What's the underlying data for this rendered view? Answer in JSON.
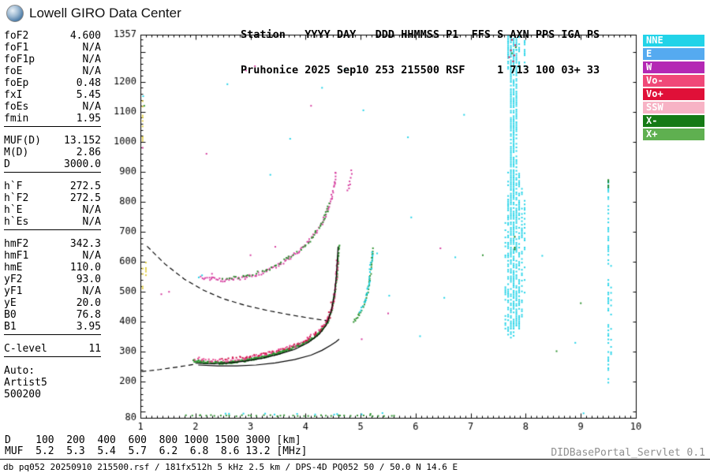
{
  "brand": {
    "logo_icon": "giro-globe-icon",
    "title": "Lowell GIRO Data Center"
  },
  "station_header": {
    "line1": "Station   YYYY DAY   DDD HHMMSS P1  FFS S AXN PPS IGA PS",
    "line2": "Pruhonice 2025 Sep10 253 215500 RSF     1 713 100 03+ 33"
  },
  "panel": {
    "groups": [
      {
        "rows": [
          [
            "foF2",
            "4.600"
          ],
          [
            "foF1",
            "N/A"
          ],
          [
            "foF1p",
            "N/A"
          ],
          [
            "foE",
            "N/A"
          ],
          [
            "foEp",
            "0.48"
          ],
          [
            "fxI",
            "5.45"
          ],
          [
            "foEs",
            "N/A"
          ],
          [
            "fmin",
            "1.95"
          ]
        ]
      },
      {
        "rows": [
          [
            "MUF(D)",
            "13.152"
          ],
          [
            "M(D)",
            "2.86"
          ],
          [
            "D",
            "3000.0"
          ]
        ]
      },
      {
        "rows": [
          [
            "h`F",
            "272.5"
          ],
          [
            "h`F2",
            "272.5"
          ],
          [
            "h`E",
            "N/A"
          ],
          [
            "h`Es",
            "N/A"
          ]
        ]
      },
      {
        "rows": [
          [
            "hmF2",
            "342.3"
          ],
          [
            "hmF1",
            "N/A"
          ],
          [
            "hmE",
            "110.0"
          ],
          [
            "yF2",
            "93.0"
          ],
          [
            "yF1",
            "N/A"
          ],
          [
            "yE",
            "20.0"
          ],
          [
            "B0",
            "76.8"
          ],
          [
            "B1",
            "3.95"
          ]
        ]
      },
      {
        "rows": [
          [
            "C-level",
            "11"
          ]
        ]
      }
    ],
    "auto": [
      "Auto:",
      "Artist5",
      "500200"
    ]
  },
  "legend": {
    "items": [
      {
        "label": "NNE",
        "color": "#22d3e8"
      },
      {
        "label": "E",
        "color": "#55aaf0"
      },
      {
        "label": "W",
        "color": "#b428b4"
      },
      {
        "label": "Vo-",
        "color": "#f04878"
      },
      {
        "label": "Vo+",
        "color": "#e01038"
      },
      {
        "label": "SSW",
        "color": "#f7b3c5"
      },
      {
        "label": "X-",
        "color": "#157a15"
      },
      {
        "label": "X+",
        "color": "#5fb050"
      }
    ]
  },
  "footer": {
    "d_line": "D    100  200  400  600  800 1000 1500 3000 [km]",
    "muf_line": "MUF  5.2  5.3  5.4  5.7  6.2  6.8  8.6 13.2 [MHz]",
    "status_line": "db pq052 20250910 215500.rsf / 181fx512h 5 kHz 2.5 km / DPS-4D PQ052 50 / 50.0 N 14.6 E",
    "servlet": "DIDBasePortal_Servlet 0.1"
  },
  "chart_data": {
    "type": "scatter",
    "title": "",
    "xlabel": "[MHz]",
    "ylabel": "[km]",
    "xlim": [
      1,
      10
    ],
    "ylim": [
      80,
      1357
    ],
    "x_ticks": [
      1,
      2,
      3,
      4,
      5,
      6,
      7,
      8,
      9,
      10
    ],
    "y_ticks": [
      80,
      200,
      300,
      400,
      500,
      600,
      700,
      800,
      900,
      1000,
      1100,
      1200,
      1357
    ],
    "x_minor_step": 0.1,
    "y_minor_step": 20,
    "grid": false,
    "legend_position": "top-right",
    "traces": [
      {
        "name": "F-trace-1hop-O-green",
        "color": "#2f9231",
        "step": 0.02,
        "spread": 4,
        "dup": 2,
        "path": [
          [
            1.97,
            270
          ],
          [
            2.1,
            266
          ],
          [
            2.3,
            263
          ],
          [
            2.5,
            263
          ],
          [
            2.7,
            266
          ],
          [
            2.9,
            271
          ],
          [
            3.1,
            278
          ],
          [
            3.3,
            286
          ],
          [
            3.5,
            296
          ],
          [
            3.7,
            308
          ],
          [
            3.9,
            323
          ],
          [
            4.05,
            337
          ],
          [
            4.2,
            356
          ],
          [
            4.3,
            374
          ],
          [
            4.4,
            400
          ],
          [
            4.47,
            435
          ],
          [
            4.52,
            480
          ],
          [
            4.56,
            535
          ],
          [
            4.59,
            600
          ],
          [
            4.61,
            655
          ]
        ]
      },
      {
        "name": "F-trace-1hop-Vo-pink",
        "color": "#e8458f",
        "step": 0.035,
        "spread": 5,
        "dup": 1,
        "path": [
          [
            2.0,
            278
          ],
          [
            2.3,
            271
          ],
          [
            2.6,
            271
          ],
          [
            2.9,
            279
          ],
          [
            3.2,
            289
          ],
          [
            3.5,
            304
          ],
          [
            3.8,
            320
          ],
          [
            4.05,
            345
          ],
          [
            4.2,
            364
          ],
          [
            4.3,
            382
          ],
          [
            4.4,
            408
          ],
          [
            4.47,
            443
          ],
          [
            4.52,
            488
          ],
          [
            4.56,
            543
          ],
          [
            4.58,
            608
          ]
        ]
      },
      {
        "name": "F-trace-1hop-Vo-red",
        "color": "#cf1647",
        "step": 0.06,
        "spread": 3,
        "dup": 1,
        "path": [
          [
            2.5,
            276
          ],
          [
            2.9,
            283
          ],
          [
            3.3,
            294
          ],
          [
            3.7,
            313
          ],
          [
            4.0,
            336
          ],
          [
            4.2,
            362
          ],
          [
            4.32,
            384
          ],
          [
            4.42,
            414
          ],
          [
            4.5,
            470
          ]
        ]
      },
      {
        "name": "F-trace-2hop-pink",
        "color": "#d63fa0",
        "step": 0.03,
        "spread": 6,
        "dup": 1,
        "path": [
          [
            2.1,
            550
          ],
          [
            2.3,
            543
          ],
          [
            2.5,
            540
          ],
          [
            2.7,
            542
          ],
          [
            2.9,
            548
          ],
          [
            3.1,
            557
          ],
          [
            3.3,
            570
          ],
          [
            3.5,
            588
          ],
          [
            3.7,
            611
          ],
          [
            3.9,
            640
          ],
          [
            4.05,
            668
          ],
          [
            4.2,
            700
          ],
          [
            4.3,
            730
          ],
          [
            4.4,
            770
          ],
          [
            4.47,
            815
          ],
          [
            4.52,
            860
          ],
          [
            4.55,
            900
          ]
        ]
      },
      {
        "name": "F-trace-2hop-green",
        "color": "#2f9231",
        "step": 0.05,
        "spread": 5,
        "dup": 1,
        "path": [
          [
            2.5,
            543
          ],
          [
            2.9,
            550
          ],
          [
            3.3,
            572
          ],
          [
            3.7,
            613
          ],
          [
            4.0,
            654
          ],
          [
            4.2,
            702
          ],
          [
            4.3,
            732
          ],
          [
            4.38,
            765
          ],
          [
            4.44,
            792
          ]
        ]
      },
      {
        "name": "X-trace-1hop-green",
        "color": "#2f9231",
        "step": 0.02,
        "spread": 5,
        "dup": 1,
        "path": [
          [
            4.88,
            400
          ],
          [
            4.98,
            424
          ],
          [
            5.06,
            454
          ],
          [
            5.12,
            492
          ],
          [
            5.17,
            540
          ],
          [
            5.2,
            595
          ],
          [
            5.22,
            645
          ]
        ]
      },
      {
        "name": "X-trace-1hop-cyan",
        "color": "#22d3e8",
        "step": 0.04,
        "spread": 6,
        "dup": 1,
        "path": [
          [
            5.0,
            432
          ],
          [
            5.08,
            470
          ],
          [
            5.14,
            515
          ],
          [
            5.18,
            570
          ],
          [
            5.21,
            630
          ]
        ]
      },
      {
        "name": "noise-floor-green",
        "color": "#2f9231",
        "step": 0.1,
        "spread": 2,
        "dup": 1,
        "path": [
          [
            1.85,
            87
          ],
          [
            5.65,
            87
          ]
        ]
      },
      {
        "name": "noise-floor-cyan",
        "color": "#22d3e8",
        "step": 0.3,
        "spread": 3,
        "dup": 1,
        "path": [
          [
            2.4,
            93
          ],
          [
            5.3,
            93
          ]
        ]
      }
    ],
    "bands": [
      {
        "x": 7.63,
        "color": "#22d3e8",
        "ranges": [
          [
            380,
            520,
            0.45
          ],
          [
            600,
            760,
            0.35
          ]
        ]
      },
      {
        "x": 7.68,
        "color": "#22d3e8",
        "ranges": [
          [
            360,
            900,
            0.6
          ],
          [
            1240,
            1357,
            0.75
          ]
        ]
      },
      {
        "x": 7.73,
        "color": "#22d3e8",
        "ranges": [
          [
            350,
            1357,
            0.8
          ]
        ]
      },
      {
        "x": 7.78,
        "color": "#22d3e8",
        "ranges": [
          [
            350,
            1357,
            0.85
          ]
        ]
      },
      {
        "x": 7.83,
        "color": "#22d3e8",
        "ranges": [
          [
            360,
            1310,
            0.65
          ],
          [
            1310,
            1357,
            0.85
          ]
        ]
      },
      {
        "x": 7.88,
        "color": "#22d3e8",
        "ranges": [
          [
            380,
            900,
            0.55
          ],
          [
            1250,
            1357,
            0.6
          ]
        ]
      },
      {
        "x": 7.93,
        "color": "#22d3e8",
        "ranges": [
          [
            420,
            870,
            0.45
          ]
        ]
      },
      {
        "x": 7.98,
        "color": "#22d3e8",
        "ranges": [
          [
            500,
            860,
            0.3
          ],
          [
            1255,
            1340,
            0.35
          ]
        ]
      },
      {
        "x": 7.8,
        "color": "#157a15",
        "ranges": [
          [
            632,
            692,
            0.5
          ]
        ]
      },
      {
        "x": 9.5,
        "color": "#22d3e8",
        "ranges": [
          [
            200,
            880,
            0.4
          ]
        ]
      },
      {
        "x": 9.55,
        "color": "#22d3e8",
        "ranges": [
          [
            235,
            620,
            0.2
          ]
        ]
      },
      {
        "x": 9.5,
        "color": "#157a15",
        "ranges": [
          [
            845,
            885,
            0.5
          ]
        ]
      },
      {
        "x": 1.04,
        "color": "#e3cf45",
        "ranges": [
          [
            1000,
            1145,
            0.4
          ],
          [
            490,
            585,
            0.4
          ]
        ]
      },
      {
        "x": 1.1,
        "color": "#e3cf45",
        "ranges": [
          [
            540,
            605,
            0.3
          ]
        ]
      }
    ],
    "dots": [
      {
        "color": "#cf1647",
        "points": [
          [
            7.7,
            1282
          ],
          [
            7.73,
            1305
          ],
          [
            7.77,
            1268
          ],
          [
            7.81,
            1322
          ],
          [
            7.75,
            1340
          ],
          [
            7.79,
            1288
          ]
        ]
      },
      {
        "color": "#2f9231",
        "points": [
          [
            7.75,
            1295
          ],
          [
            7.82,
            1315
          ],
          [
            7.22,
            622
          ],
          [
            8.56,
            302
          ],
          [
            1.07,
            1120
          ],
          [
            2.08,
            88
          ],
          [
            5.18,
            93
          ],
          [
            9.0,
            462
          ]
        ]
      },
      {
        "color": "#d63fa0",
        "points": [
          [
            4.78,
            855
          ],
          [
            4.8,
            868
          ],
          [
            4.82,
            880
          ],
          [
            4.84,
            893
          ],
          [
            4.79,
            845
          ],
          [
            4.76,
            838
          ],
          [
            4.83,
            905
          ],
          [
            4.81,
            858
          ],
          [
            1.38,
            492
          ],
          [
            1.52,
            500
          ],
          [
            2.3,
            560
          ],
          [
            3.0,
            622
          ],
          [
            3.45,
            650
          ],
          [
            5.02,
            342
          ],
          [
            5.5,
            428
          ],
          [
            6.45,
            645
          ],
          [
            2.92,
            1238
          ],
          [
            3.08,
            1252
          ],
          [
            1.04,
            980
          ],
          [
            2.2,
            960
          ],
          [
            4.1,
            1120
          ]
        ]
      },
      {
        "color": "#22d3e8",
        "points": [
          [
            2.06,
            548
          ],
          [
            2.12,
            555
          ],
          [
            5.52,
            487
          ],
          [
            5.86,
            1015
          ],
          [
            6.08,
            352
          ],
          [
            6.52,
            480
          ],
          [
            6.88,
            1090
          ],
          [
            5.3,
            628
          ],
          [
            3.36,
            890
          ],
          [
            2.58,
            1192
          ],
          [
            4.72,
            1242
          ],
          [
            5.92,
            748
          ],
          [
            6.72,
            615
          ],
          [
            8.3,
            620
          ],
          [
            8.9,
            330
          ],
          [
            3.72,
            1010
          ],
          [
            4.3,
            1180
          ],
          [
            5.05,
            1105
          ],
          [
            1.05,
            1152
          ],
          [
            9.05,
            95
          ]
        ]
      }
    ],
    "lines": [
      {
        "name": "transmission-curve",
        "style": "dashed",
        "color": "#000000",
        "path": [
          [
            1.12,
            652
          ],
          [
            1.45,
            592
          ],
          [
            1.8,
            542
          ],
          [
            2.15,
            505
          ],
          [
            2.5,
            477
          ],
          [
            2.9,
            455
          ],
          [
            3.3,
            438
          ],
          [
            3.7,
            424
          ],
          [
            4.05,
            413
          ],
          [
            4.38,
            404
          ]
        ]
      },
      {
        "name": "trace-extrapolation",
        "style": "dashed",
        "color": "#000000",
        "path": [
          [
            1.02,
            234
          ],
          [
            1.35,
            241
          ],
          [
            1.7,
            250
          ],
          [
            2.0,
            259
          ]
        ]
      },
      {
        "name": "artist-f-trace",
        "style": "solid",
        "color": "#000000",
        "path": [
          [
            2.0,
            262
          ],
          [
            2.3,
            260
          ],
          [
            2.6,
            263
          ],
          [
            2.9,
            269
          ],
          [
            3.2,
            278
          ],
          [
            3.5,
            291
          ],
          [
            3.8,
            308
          ],
          [
            4.05,
            331
          ],
          [
            4.25,
            359
          ],
          [
            4.38,
            390
          ],
          [
            4.47,
            438
          ],
          [
            4.53,
            498
          ],
          [
            4.56,
            556
          ],
          [
            4.58,
            615
          ],
          [
            4.59,
            650
          ]
        ]
      },
      {
        "name": "true-height-profile",
        "style": "solid",
        "color": "#000000",
        "path": [
          [
            2.05,
            256
          ],
          [
            2.4,
            253
          ],
          [
            2.75,
            253
          ],
          [
            3.1,
            256
          ],
          [
            3.45,
            263
          ],
          [
            3.8,
            274
          ],
          [
            4.1,
            289
          ],
          [
            4.3,
            305
          ],
          [
            4.45,
            321
          ],
          [
            4.55,
            333
          ],
          [
            4.61,
            342
          ]
        ]
      }
    ]
  }
}
